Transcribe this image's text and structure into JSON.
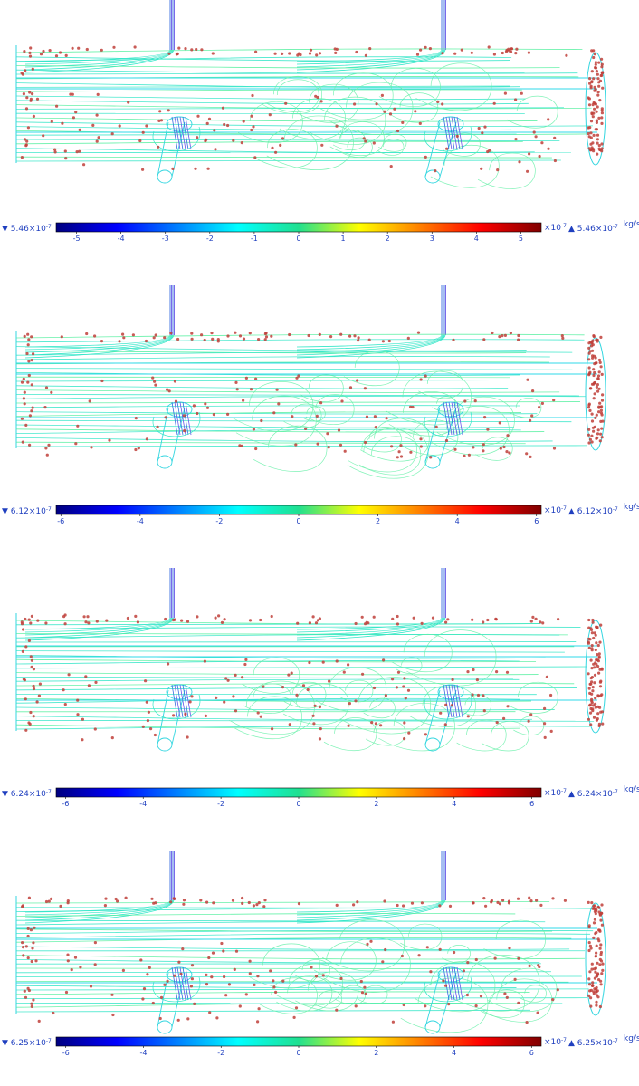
{
  "panels": [
    {
      "min_label": "5.46×10",
      "max_label": "5.46×10",
      "exp": "-7",
      "scale_label": "×10",
      "scale_exp": "-7",
      "unit": "kg/s",
      "ticks": [
        "-5",
        "-4",
        "-3",
        "-2",
        "-1",
        "0",
        "1",
        "2",
        "3",
        "4",
        "5"
      ],
      "range": 5.46
    },
    {
      "min_label": "6.12×10",
      "max_label": "6.12×10",
      "exp": "-7",
      "scale_label": "×10",
      "scale_exp": "-7",
      "unit": "kg/s",
      "ticks": [
        "-6",
        "-4",
        "-2",
        "0",
        "2",
        "4",
        "6"
      ],
      "range": 6.12
    },
    {
      "min_label": "6.24×10",
      "max_label": "6.24×10",
      "exp": "-7",
      "scale_label": "×10",
      "scale_exp": "-7",
      "unit": "kg/s",
      "ticks": [
        "-6",
        "-4",
        "-2",
        "0",
        "2",
        "4",
        "6"
      ],
      "range": 6.24
    },
    {
      "min_label": "6.25×10",
      "max_label": "6.25×10",
      "exp": "-7",
      "scale_label": "×10",
      "scale_exp": "-7",
      "unit": "kg/s",
      "ticks": [
        "-6",
        "-4",
        "-2",
        "0",
        "2",
        "4",
        "6"
      ],
      "range": 6.25
    }
  ],
  "colors": {
    "stream": "#33e6c8",
    "stream_alt": "#55f0a0",
    "particle": "#c0403a",
    "pipe": "#3a6fe0",
    "text": "#1f3fbf"
  }
}
